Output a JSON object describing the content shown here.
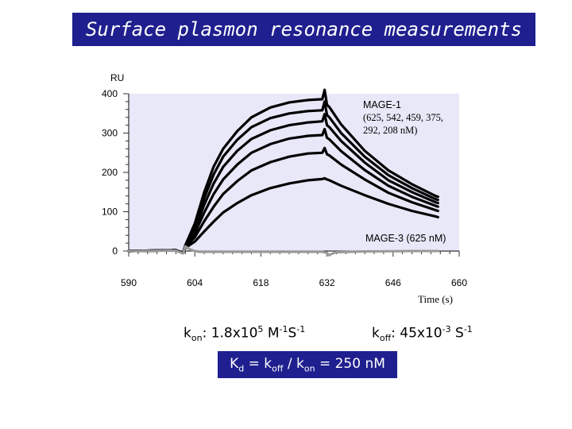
{
  "title": "Surface plasmon resonance measurements",
  "chart_data": {
    "type": "line",
    "ylabel": "RU",
    "xlabel": "Time (s)",
    "xlim": [
      590,
      660
    ],
    "ylim": [
      0,
      400
    ],
    "x_ticks": [
      590,
      604,
      618,
      632,
      646,
      660
    ],
    "y_ticks": [
      0,
      100,
      200,
      300,
      400
    ],
    "grid": false,
    "background": "#e8e8f8",
    "annotations": [
      {
        "text_lines": [
          "MAGE-1",
          "(625, 542, 459, 375,",
          "292, 208 nM)"
        ]
      },
      {
        "text": "MAGE-3 (625 nM)"
      }
    ],
    "series": [
      {
        "color": "#000000",
        "x": [
          590,
          600,
          601.5,
          602,
          604,
          606,
          608,
          610,
          613,
          616,
          620,
          624,
          628,
          631,
          631.5,
          632,
          632.5,
          635,
          640,
          645,
          650,
          655,
          655.5
        ],
        "y": [
          0,
          2,
          -5,
          15,
          70,
          150,
          215,
          260,
          305,
          340,
          365,
          378,
          384,
          386,
          410,
          372,
          366,
          322,
          255,
          205,
          170,
          140,
          138
        ]
      },
      {
        "color": "#000000",
        "x": [
          590,
          600,
          601.5,
          602,
          604,
          606,
          608,
          610,
          613,
          616,
          620,
          624,
          628,
          631,
          631.5,
          632,
          632.5,
          635,
          640,
          645,
          650,
          655,
          655.5
        ],
        "y": [
          0,
          2,
          -5,
          14,
          62,
          135,
          195,
          240,
          283,
          315,
          338,
          350,
          356,
          358,
          380,
          346,
          340,
          300,
          240,
          193,
          160,
          132,
          130
        ]
      },
      {
        "color": "#000000",
        "x": [
          590,
          600,
          601.5,
          602,
          604,
          606,
          608,
          610,
          613,
          616,
          620,
          624,
          628,
          631,
          631.5,
          632,
          632.5,
          635,
          640,
          645,
          650,
          655,
          655.5
        ],
        "y": [
          0,
          2,
          -5,
          13,
          54,
          118,
          172,
          214,
          255,
          285,
          307,
          320,
          327,
          330,
          348,
          320,
          315,
          280,
          225,
          180,
          150,
          124,
          122
        ]
      },
      {
        "color": "#000000",
        "x": [
          590,
          600,
          601.5,
          602,
          604,
          606,
          608,
          610,
          613,
          616,
          620,
          624,
          628,
          631,
          631.5,
          632,
          632.5,
          635,
          640,
          645,
          650,
          655,
          655.5
        ],
        "y": [
          0,
          2,
          -5,
          12,
          45,
          98,
          145,
          182,
          220,
          250,
          272,
          286,
          293,
          295,
          310,
          288,
          284,
          254,
          206,
          166,
          138,
          115,
          113
        ]
      },
      {
        "color": "#000000",
        "x": [
          590,
          600,
          601.5,
          602,
          604,
          606,
          608,
          610,
          613,
          616,
          620,
          624,
          628,
          631,
          631.5,
          632,
          632.5,
          635,
          640,
          645,
          650,
          655,
          655.5
        ],
        "y": [
          0,
          2,
          -5,
          10,
          35,
          76,
          113,
          145,
          178,
          205,
          226,
          240,
          248,
          250,
          262,
          246,
          243,
          220,
          182,
          148,
          124,
          104,
          102
        ]
      },
      {
        "color": "#000000",
        "x": [
          590,
          600,
          601.5,
          602,
          604,
          606,
          608,
          610,
          613,
          616,
          620,
          624,
          628,
          631,
          631.5,
          632,
          632.5,
          635,
          640,
          645,
          650,
          655,
          655.5
        ],
        "y": [
          0,
          2,
          -5,
          8,
          24,
          50,
          75,
          98,
          122,
          142,
          160,
          172,
          180,
          183,
          185,
          182,
          180,
          166,
          142,
          120,
          102,
          88,
          86
        ]
      },
      {
        "color": "#999999",
        "x": [
          590,
          600,
          601.5,
          602,
          603,
          604,
          605,
          608,
          620,
          631,
          632,
          632.5,
          633,
          634,
          640,
          650,
          655.5
        ],
        "y": [
          0,
          1,
          -6,
          12,
          4,
          0,
          -2,
          -2,
          -2,
          -2,
          -5,
          -11,
          -7,
          -3,
          -1,
          0,
          0
        ]
      }
    ]
  },
  "equations": {
    "kon": {
      "k": "k",
      "sub": "on",
      "rest": ": 1.8x10",
      "exp": "5",
      "unit1": " M",
      "exp2": "-1",
      "unit2": "S",
      "exp3": "-1"
    },
    "koff": {
      "k": "k",
      "sub": "off",
      "rest": ": 45x10",
      "exp": "-3",
      "unit1": " S",
      "exp2": "-1"
    },
    "kd": {
      "k1": "K",
      "sub1": "d",
      "mid": " = k",
      "sub2": "off",
      "mid2": " / k",
      "sub3": "on",
      "rest": " = 250 nM"
    }
  }
}
